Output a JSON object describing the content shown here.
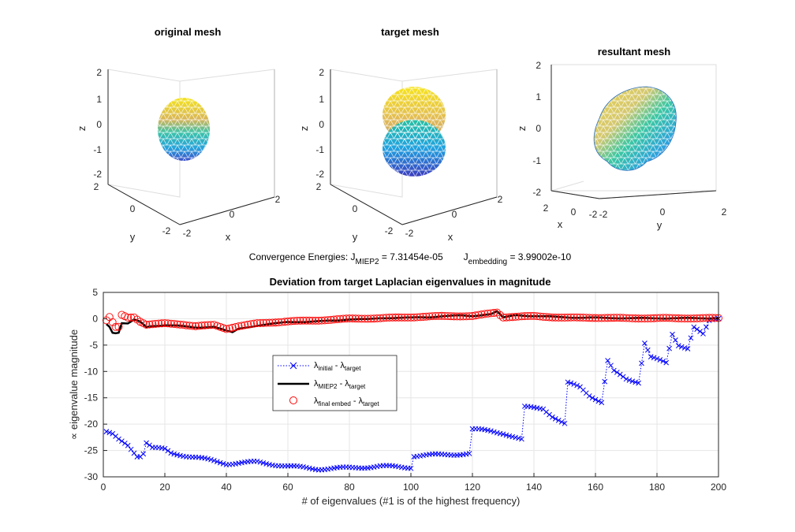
{
  "meshes": [
    {
      "title": "original mesh",
      "xlabel": "x",
      "ylabel": "y",
      "zlabel": "z",
      "zticks": [
        "2",
        "1",
        "0",
        "-1",
        "-2"
      ],
      "yticks": [
        "2",
        "0",
        "-2"
      ],
      "xticks": [
        "-2",
        "0",
        "2"
      ]
    },
    {
      "title": "target mesh",
      "xlabel": "x",
      "ylabel": "y",
      "zlabel": "z",
      "zticks": [
        "2",
        "1",
        "0",
        "-1",
        "-2"
      ],
      "yticks": [
        "2",
        "0",
        "-2"
      ],
      "xticks": [
        "-2",
        "0",
        "2"
      ]
    },
    {
      "title": "resultant mesh",
      "xlabel": "x",
      "ylabel": "y",
      "zlabel": "z",
      "zticks": [
        "2",
        "1",
        "0",
        "-1",
        "-2"
      ],
      "yticks": [
        "-2",
        "0",
        "2"
      ],
      "xticks": [
        "2",
        "0",
        "-2"
      ]
    }
  ],
  "energies": {
    "prefix": "Convergence Energies: J",
    "sub1": "MIEP2",
    "val1": " = 7.31454e-05",
    "mid": "J",
    "sub2": "embedding",
    "val2": " = 3.99002e-10"
  },
  "legend_text": {
    "l1": {
      "main": "λ",
      "sub": "initial",
      "mid": " - λ",
      "sub2": "target"
    },
    "l2": {
      "main": "λ",
      "sub": "MIEP2",
      "mid": " - λ",
      "sub2": "target"
    },
    "l3": {
      "main": "λ",
      "sub": "final embed",
      "mid": " - λ",
      "sub2": "target"
    }
  },
  "chart_data": {
    "type": "line",
    "title": "Deviation from target Laplacian eigenvalues in magnitude",
    "xlabel": "# of eigenvalues (#1 is of the highest frequency)",
    "ylabel": "∝ eigenvalue magnitude",
    "xlim": [
      0,
      200
    ],
    "ylim": [
      -30,
      5
    ],
    "xticks": [
      0,
      20,
      40,
      60,
      80,
      100,
      120,
      140,
      160,
      180,
      200
    ],
    "yticks": [
      5,
      0,
      -5,
      -10,
      -15,
      -20,
      -25,
      -30
    ],
    "grid": true,
    "legend_position": "center-left",
    "series": [
      {
        "style": "blue dotted line with x markers",
        "color": "#0000ff",
        "keypoints": [
          [
            1,
            -21.5
          ],
          [
            3,
            -22
          ],
          [
            5,
            -23
          ],
          [
            8,
            -24
          ],
          [
            11,
            -26
          ],
          [
            12,
            -26
          ],
          [
            13,
            -25.5
          ],
          [
            14,
            -23.5
          ],
          [
            16,
            -24.5
          ],
          [
            20,
            -24.8
          ],
          [
            22,
            -25.5
          ],
          [
            30,
            -26.3
          ],
          [
            36,
            -27
          ],
          [
            40,
            -27.5
          ],
          [
            50,
            -27.2
          ],
          [
            60,
            -28
          ],
          [
            70,
            -28.5
          ],
          [
            80,
            -28.3
          ],
          [
            90,
            -28
          ],
          [
            100,
            -28.2
          ],
          [
            101,
            -26
          ],
          [
            110,
            -25.8
          ],
          [
            119,
            -25.6
          ],
          [
            120,
            -21
          ],
          [
            126,
            -21.3
          ],
          [
            130,
            -21.7
          ],
          [
            136,
            -23
          ],
          [
            137,
            -16.8
          ],
          [
            143,
            -17
          ],
          [
            146,
            -18.5
          ],
          [
            150,
            -20
          ],
          [
            151,
            -12.2
          ],
          [
            155,
            -13
          ],
          [
            158,
            -14.5
          ],
          [
            162,
            -15.8
          ],
          [
            164,
            -8
          ],
          [
            166,
            -10
          ],
          [
            170,
            -11.5
          ],
          [
            174,
            -12
          ],
          [
            176,
            -4.5
          ],
          [
            178,
            -7.2
          ],
          [
            183,
            -8.5
          ],
          [
            185,
            -3
          ],
          [
            187,
            -5
          ],
          [
            190,
            -5.5
          ],
          [
            192,
            -1.5
          ],
          [
            195,
            -3
          ],
          [
            197,
            -0.5
          ],
          [
            200,
            0
          ]
        ]
      },
      {
        "style": "black solid thick line",
        "color": "#000000",
        "keypoints": [
          [
            1,
            -1
          ],
          [
            2,
            -1.5
          ],
          [
            3,
            -2.6
          ],
          [
            4,
            -2.7
          ],
          [
            5,
            -2.6
          ],
          [
            6,
            -0.8
          ],
          [
            8,
            -0.9
          ],
          [
            10,
            -0.2
          ],
          [
            12,
            -0.6
          ],
          [
            14,
            -1.6
          ],
          [
            16,
            -1.4
          ],
          [
            20,
            -1.2
          ],
          [
            24,
            -1.3
          ],
          [
            30,
            -1.7
          ],
          [
            36,
            -1.5
          ],
          [
            40,
            -2.3
          ],
          [
            42,
            -2.6
          ],
          [
            44,
            -1.9
          ],
          [
            50,
            -1.3
          ],
          [
            56,
            -0.9
          ],
          [
            60,
            -0.6
          ],
          [
            66,
            -0.6
          ],
          [
            70,
            -0.5
          ],
          [
            76,
            -0.3
          ],
          [
            80,
            -0.1
          ],
          [
            86,
            -0.1
          ],
          [
            90,
            0.1
          ],
          [
            96,
            0.2
          ],
          [
            100,
            0.2
          ],
          [
            106,
            0.3
          ],
          [
            110,
            0.5
          ],
          [
            116,
            0.6
          ],
          [
            120,
            0.5
          ],
          [
            124,
            0.8
          ],
          [
            126,
            0.9
          ],
          [
            128,
            1.4
          ],
          [
            130,
            0.2
          ],
          [
            134,
            0.7
          ],
          [
            140,
            0.5
          ],
          [
            150,
            0.3
          ],
          [
            156,
            0.2
          ],
          [
            160,
            0.2
          ],
          [
            170,
            0.1
          ],
          [
            180,
            0.1
          ],
          [
            190,
            0.1
          ],
          [
            200,
            0.1
          ]
        ]
      },
      {
        "style": "red circle markers",
        "color": "#ff0000",
        "keypoints": [
          [
            1,
            -0.3
          ],
          [
            2,
            0.3
          ],
          [
            3,
            -0.7
          ],
          [
            4,
            -1.6
          ],
          [
            5,
            -1.6
          ],
          [
            6,
            0.7
          ],
          [
            8,
            0.2
          ],
          [
            10,
            0.3
          ],
          [
            12,
            -0.5
          ],
          [
            14,
            -1.1
          ],
          [
            20,
            -0.9
          ],
          [
            26,
            -1.1
          ],
          [
            30,
            -1.4
          ],
          [
            36,
            -1.2
          ],
          [
            40,
            -1.9
          ],
          [
            44,
            -1.4
          ],
          [
            50,
            -0.9
          ],
          [
            60,
            -0.5
          ],
          [
            70,
            -0.3
          ],
          [
            80,
            0
          ],
          [
            90,
            0.1
          ],
          [
            100,
            0.3
          ],
          [
            110,
            0.5
          ],
          [
            120,
            0.5
          ],
          [
            128,
            1.2
          ],
          [
            130,
            0.3
          ],
          [
            140,
            0.5
          ],
          [
            150,
            0.2
          ],
          [
            160,
            0.2
          ],
          [
            170,
            0.1
          ],
          [
            180,
            0.1
          ],
          [
            190,
            0.1
          ],
          [
            200,
            0.1
          ]
        ]
      }
    ]
  }
}
